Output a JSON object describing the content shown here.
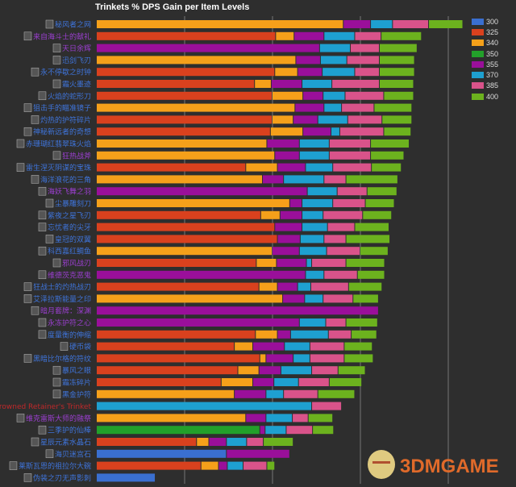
{
  "chart_data": {
    "type": "bar",
    "orientation": "horizontal",
    "stacked": true,
    "title": "Trinkets % DPS Gain per Item Levels",
    "xlabel": "",
    "ylabel": "",
    "xlim": [
      0,
      4.4
    ],
    "grid": true,
    "gridlines_at": [
      1,
      2,
      3,
      4
    ],
    "legend_position": "right",
    "series": [
      {
        "name": "300",
        "color": "#3a6fd0"
      },
      {
        "name": "325",
        "color": "#d9411e"
      },
      {
        "name": "340",
        "color": "#f5a01a"
      },
      {
        "name": "350",
        "color": "#22a02a"
      },
      {
        "name": "355",
        "color": "#9a0f9a"
      },
      {
        "name": "370",
        "color": "#1ea0d0"
      },
      {
        "name": "385",
        "color": "#d9538a"
      },
      {
        "name": "400",
        "color": "#6cb21e"
      }
    ],
    "label_colors": {
      "blue": "#3f74da",
      "purple": "#9b3fd0",
      "red": "#c0282a"
    },
    "rows": [
      {
        "label": "秘风者之网",
        "lc": "blue",
        "seg": {
          "340": 2.81,
          "355": 0.31,
          "370": 0.25,
          "385": 0.41,
          "400": 0.39
        }
      },
      {
        "label": "来自海斗士的献礼",
        "lc": "purple",
        "seg": {
          "325": 2.04,
          "340": 0.21,
          "355": 0.34,
          "370": 0.35,
          "385": 0.3,
          "400": 0.46
        }
      },
      {
        "label": "天日余辉",
        "lc": "purple",
        "seg": {
          "355": 2.54,
          "370": 0.35,
          "385": 0.33,
          "400": 0.43
        }
      },
      {
        "label": "迅剑飞刃",
        "lc": "blue",
        "seg": {
          "340": 2.27,
          "355": 0.28,
          "370": 0.3,
          "385": 0.37,
          "400": 0.4
        }
      },
      {
        "label": "永不停歇之时钟",
        "lc": "blue",
        "seg": {
          "325": 2.03,
          "340": 0.26,
          "355": 0.28,
          "370": 0.37,
          "385": 0.28,
          "400": 0.4
        }
      },
      {
        "label": "霜火墨迹",
        "lc": "blue",
        "seg": {
          "325": 1.8,
          "340": 0.19,
          "355": 0.35,
          "370": 0.34,
          "385": 0.54,
          "400": 0.39
        }
      },
      {
        "label": "火焰的蛇形刀",
        "lc": "blue",
        "seg": {
          "325": 2.0,
          "340": 0.35,
          "355": 0.23,
          "370": 0.25,
          "385": 0.44,
          "400": 0.34
        }
      },
      {
        "label": "狙击手的瞄准镜子",
        "lc": "blue",
        "seg": {
          "340": 2.26,
          "355": 0.33,
          "370": 0.2,
          "385": 0.37,
          "400": 0.43
        }
      },
      {
        "label": "灼热的护符碎片",
        "lc": "blue",
        "seg": {
          "325": 2.0,
          "340": 0.24,
          "355": 0.28,
          "370": 0.34,
          "385": 0.39,
          "400": 0.34
        }
      },
      {
        "label": "神秘新远者的奇想",
        "lc": "blue",
        "seg": {
          "325": 1.98,
          "340": 0.37,
          "355": 0.32,
          "370": 0.1,
          "385": 0.5,
          "400": 0.31
        }
      },
      {
        "label": "赤珊瑚红翡翠珠火焰",
        "lc": "blue",
        "seg": {
          "340": 1.94,
          "355": 0.37,
          "370": 0.34,
          "385": 0.47,
          "400": 0.44
        }
      },
      {
        "label": "狂热战斧",
        "lc": "purple",
        "seg": {
          "340": 2.03,
          "355": 0.28,
          "370": 0.34,
          "385": 0.47,
          "400": 0.38
        }
      },
      {
        "label": "雷生涅灭阴谋的宝珠",
        "lc": "blue",
        "seg": {
          "325": 1.7,
          "340": 0.36,
          "355": 0.32,
          "370": 0.31,
          "385": 0.44,
          "400": 0.34
        }
      },
      {
        "label": "海洋浪花的三角",
        "lc": "blue",
        "seg": {
          "340": 1.89,
          "355": 0.24,
          "370": 0.46,
          "385": 0.25,
          "400": 0.59
        }
      },
      {
        "label": "海妖飞舞之羽",
        "lc": "purple",
        "seg": {
          "355": 2.4,
          "370": 0.34,
          "385": 0.34,
          "400": 0.34
        }
      },
      {
        "label": "尘暴雕刻刀",
        "lc": "blue",
        "seg": {
          "340": 2.2,
          "355": 0.14,
          "370": 0.35,
          "385": 0.37,
          "400": 0.33
        }
      },
      {
        "label": "紫夜之星飞刃",
        "lc": "blue",
        "seg": {
          "325": 1.87,
          "340": 0.22,
          "355": 0.25,
          "370": 0.24,
          "385": 0.45,
          "400": 0.33
        }
      },
      {
        "label": "忘忧者的尖牙",
        "lc": "blue",
        "seg": {
          "325": 2.03,
          "355": 0.31,
          "370": 0.29,
          "385": 0.31,
          "400": 0.39
        }
      },
      {
        "label": "皇冠的双翼",
        "lc": "blue",
        "seg": {
          "325": 2.06,
          "355": 0.26,
          "370": 0.27,
          "385": 0.25,
          "400": 0.5
        }
      },
      {
        "label": "科西嘉红鲷鱼",
        "lc": "blue",
        "seg": {
          "340": 2.0,
          "355": 0.31,
          "370": 0.31,
          "385": 0.38,
          "400": 0.32
        }
      },
      {
        "label": "邪风战刃",
        "lc": "purple",
        "seg": {
          "325": 1.82,
          "340": 0.23,
          "355": 0.34,
          "370": 0.06,
          "385": 0.39,
          "400": 0.44
        }
      },
      {
        "label": "维德茨克恶鬼",
        "lc": "purple",
        "seg": {
          "355": 2.38,
          "370": 0.21,
          "385": 0.38,
          "400": 0.31
        }
      },
      {
        "label": "狂战士的灼热战刃",
        "lc": "blue",
        "seg": {
          "325": 1.85,
          "340": 0.21,
          "355": 0.23,
          "370": 0.15,
          "385": 0.43,
          "400": 0.38
        }
      },
      {
        "label": "艾泽拉斯能量之印",
        "lc": "blue",
        "seg": {
          "340": 2.12,
          "355": 0.25,
          "370": 0.21,
          "385": 0.34,
          "400": 0.29
        }
      },
      {
        "label": "暗月套牌：深渊",
        "lc": "purple",
        "seg": {
          "355": 3.21
        }
      },
      {
        "label": "永冻护符之心",
        "lc": "purple",
        "seg": {
          "355": 2.31,
          "370": 0.3,
          "385": 0.23,
          "400": 0.36
        }
      },
      {
        "label": "度量衡的伸缩",
        "lc": "blue",
        "seg": {
          "325": 1.81,
          "340": 0.25,
          "355": 0.15,
          "370": 0.43,
          "385": 0.26,
          "400": 0.29
        }
      },
      {
        "label": "硬币袋",
        "lc": "blue",
        "seg": {
          "325": 1.57,
          "340": 0.21,
          "355": 0.36,
          "370": 0.29,
          "385": 0.39,
          "400": 0.32
        }
      },
      {
        "label": "黑暗比尔格的符纹",
        "lc": "blue",
        "seg": {
          "325": 1.86,
          "340": 0.07,
          "355": 0.31,
          "370": 0.19,
          "385": 0.39,
          "400": 0.33
        }
      },
      {
        "label": "暴风之眼",
        "lc": "blue",
        "seg": {
          "325": 1.61,
          "340": 0.24,
          "355": 0.25,
          "370": 0.35,
          "385": 0.3,
          "400": 0.31
        }
      },
      {
        "label": "霜冻碎片",
        "lc": "blue",
        "seg": {
          "325": 1.42,
          "340": 0.36,
          "355": 0.24,
          "370": 0.28,
          "385": 0.35,
          "400": 0.37
        }
      },
      {
        "label": "黑金护符",
        "lc": "blue",
        "seg": {
          "340": 1.57,
          "355": 0.36,
          "370": 0.2,
          "385": 0.39,
          "400": 0.42
        }
      },
      {
        "label": "Drowned Retainer's Trinket",
        "lc": "red",
        "seg": {
          "370": 2.45,
          "385": 0.34
        }
      },
      {
        "label": "维克雷斯大师的融祭",
        "lc": "purple",
        "seg": {
          "340": 1.7,
          "355": 0.23,
          "370": 0.3,
          "385": 0.18,
          "400": 0.28
        }
      },
      {
        "label": "三季护的仙棒",
        "lc": "blue",
        "seg": {
          "350": 1.86,
          "355": 0.06,
          "370": 0.24,
          "385": 0.3,
          "400": 0.24
        }
      },
      {
        "label": "星辰元素水晶石",
        "lc": "blue",
        "seg": {
          "325": 1.14,
          "340": 0.14,
          "355": 0.2,
          "370": 0.23,
          "385": 0.19,
          "400": 0.34
        }
      },
      {
        "label": "海贝迷宫石",
        "lc": "blue",
        "seg": {
          "300": 1.48,
          "355": 0.72
        }
      },
      {
        "label": "莱斯瓦恩的祖拉尔大碗",
        "lc": "blue",
        "seg": {
          "325": 1.19,
          "340": 0.2,
          "355": 0.1,
          "370": 0.18,
          "385": 0.27,
          "400": 0.09
        }
      },
      {
        "label": "伪装之刃无声影刺",
        "lc": "blue",
        "seg": {
          "300": 0.67
        }
      }
    ]
  },
  "watermark": "3DMGAME"
}
